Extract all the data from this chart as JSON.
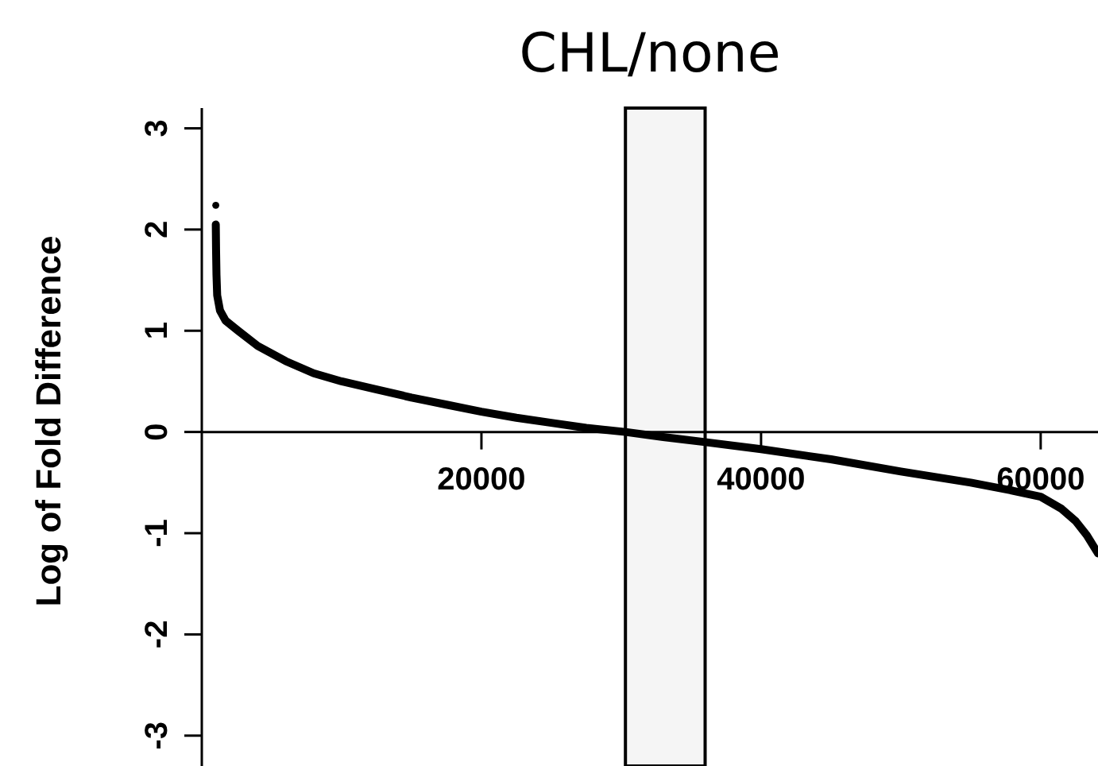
{
  "chart_data": {
    "type": "line",
    "title": "CHL/none",
    "ylabel": "Log of Fold Difference",
    "xlim": [
      0,
      64100
    ],
    "ylim": [
      -3.3,
      3.2
    ],
    "xticks": [
      20000,
      40000,
      60000
    ],
    "yticks": [
      -3,
      -2,
      -1,
      0,
      1,
      2,
      3
    ],
    "series": [
      {
        "color": "#000000",
        "x": [
          1000,
          1020,
          1050,
          1100,
          1300,
          1700,
          2600,
          4000,
          6000,
          8000,
          10000,
          12500,
          15000,
          17500,
          20000,
          22500,
          25000,
          27500,
          30300,
          33000,
          36000,
          40000,
          45000,
          50000,
          55000,
          58000,
          60000,
          61500,
          62500,
          63300,
          64100
        ],
        "values": [
          2.05,
          1.8,
          1.55,
          1.35,
          1.2,
          1.1,
          1.0,
          0.85,
          0.7,
          0.58,
          0.5,
          0.42,
          0.34,
          0.27,
          0.2,
          0.14,
          0.09,
          0.04,
          0,
          -0.05,
          -0.1,
          -0.17,
          -0.27,
          -0.39,
          -0.5,
          -0.58,
          -0.64,
          -0.76,
          -0.88,
          -1.02,
          -1.2
        ]
      },
      {
        "type": "scatter",
        "color": "#000000",
        "x": [
          1000
        ],
        "values": [
          2.24
        ]
      }
    ],
    "bands": [
      {
        "axis": "x",
        "from": 30300,
        "to": 36000,
        "color": "#000000"
      }
    ],
    "grid": false
  }
}
